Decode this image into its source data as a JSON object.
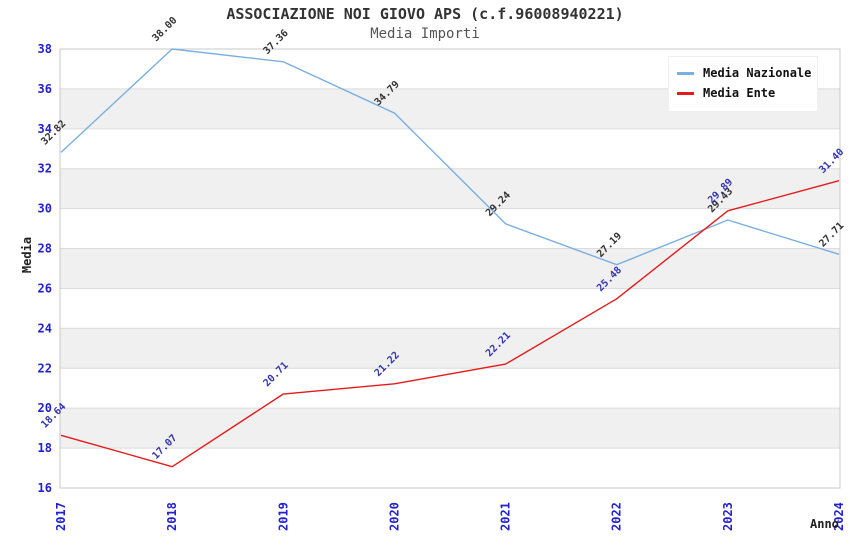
{
  "chart_data": {
    "type": "line",
    "title": "ASSOCIAZIONE NOI GIOVO APS (c.f.96008940221)",
    "subtitle": "Media Importi",
    "xlabel": "Anno",
    "ylabel": "Media",
    "categories": [
      "2017",
      "2018",
      "2019",
      "2020",
      "2021",
      "2022",
      "2023",
      "2024"
    ],
    "ylim": [
      16,
      38
    ],
    "ytick_step": 2,
    "grid": "horizontal-bands",
    "legend_position": "top-right",
    "tick_color": "#2222cc",
    "band_color_even": "#ffffff",
    "band_color_odd": "#f0f0f0",
    "gridline_color": "#dcdcdc",
    "border_color": "#c8c8c8",
    "series": [
      {
        "name": "Media Nazionale",
        "color": "#7aafe0",
        "label_color": "#333333",
        "values": [
          32.82,
          38.0,
          37.36,
          34.79,
          29.24,
          27.19,
          29.43,
          27.71
        ]
      },
      {
        "name": "Media Ente",
        "color": "#e51a1a",
        "label_color": "#3434b0",
        "values": [
          18.64,
          17.07,
          20.71,
          21.22,
          22.21,
          25.48,
          29.89,
          31.4
        ]
      }
    ]
  }
}
